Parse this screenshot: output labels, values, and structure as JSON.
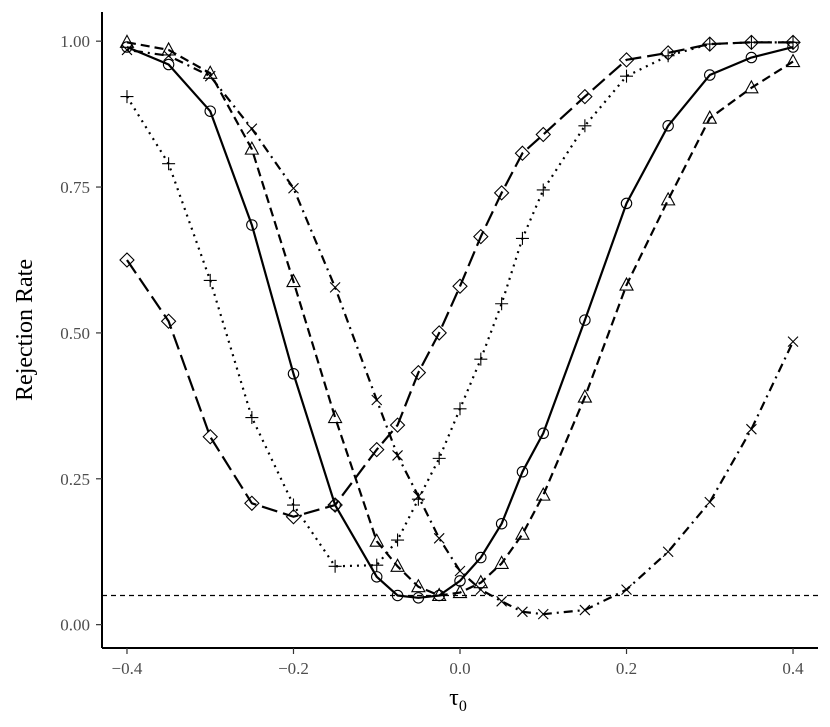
{
  "chart_data": {
    "type": "line",
    "xlabel": "τ0",
    "ylabel": "Rejection Rate",
    "xlim": [
      -0.43,
      0.43
    ],
    "ylim": [
      -0.04,
      1.05
    ],
    "x_ticks": [
      -0.4,
      -0.2,
      0.0,
      0.2,
      0.4
    ],
    "x_tick_labels": [
      "−0.4",
      "−0.2",
      "0.0",
      "0.2",
      "0.4"
    ],
    "y_ticks": [
      0.0,
      0.25,
      0.5,
      0.75,
      1.0
    ],
    "y_tick_labels": [
      "0.00",
      "0.25",
      "0.50",
      "0.75",
      "1.00"
    ],
    "reference_line": {
      "y": 0.05,
      "style": "dashed"
    },
    "grid": false,
    "series": [
      {
        "marker": "circle",
        "line_style": "solid",
        "x": [
          -0.4,
          -0.35,
          -0.3,
          -0.25,
          -0.2,
          -0.15,
          -0.1,
          -0.075,
          -0.05,
          -0.025,
          0.0,
          0.025,
          0.05,
          0.075,
          0.1,
          0.15,
          0.2,
          0.25,
          0.3,
          0.35,
          0.4
        ],
        "y": [
          0.99,
          0.96,
          0.88,
          0.685,
          0.43,
          0.205,
          0.082,
          0.05,
          0.046,
          0.05,
          0.075,
          0.115,
          0.173,
          0.262,
          0.328,
          0.522,
          0.722,
          0.855,
          0.942,
          0.972,
          0.99
        ]
      },
      {
        "marker": "triangle",
        "line_style": "dashed",
        "x": [
          -0.4,
          -0.35,
          -0.3,
          -0.25,
          -0.2,
          -0.15,
          -0.1,
          -0.075,
          -0.05,
          -0.025,
          0.0,
          0.025,
          0.05,
          0.075,
          0.1,
          0.15,
          0.2,
          0.25,
          0.3,
          0.35,
          0.4
        ],
        "y": [
          0.998,
          0.985,
          0.945,
          0.815,
          0.588,
          0.355,
          0.143,
          0.1,
          0.065,
          0.05,
          0.055,
          0.072,
          0.105,
          0.155,
          0.222,
          0.39,
          0.582,
          0.728,
          0.868,
          0.92,
          0.965
        ]
      },
      {
        "marker": "cross",
        "line_style": "dotdash",
        "x": [
          -0.4,
          -0.35,
          -0.3,
          -0.25,
          -0.2,
          -0.15,
          -0.1,
          -0.075,
          -0.05,
          -0.025,
          0.0,
          0.025,
          0.05,
          0.075,
          0.1,
          0.15,
          0.2,
          0.25,
          0.3,
          0.35,
          0.4
        ],
        "y": [
          0.985,
          0.975,
          0.94,
          0.85,
          0.748,
          0.578,
          0.385,
          0.29,
          0.22,
          0.148,
          0.092,
          0.06,
          0.04,
          0.022,
          0.018,
          0.025,
          0.06,
          0.125,
          0.21,
          0.335,
          0.485
        ]
      },
      {
        "marker": "plus",
        "line_style": "dotted",
        "x": [
          -0.4,
          -0.35,
          -0.3,
          -0.25,
          -0.2,
          -0.15,
          -0.1,
          -0.075,
          -0.05,
          -0.025,
          0.0,
          0.025,
          0.05,
          0.075,
          0.1,
          0.15,
          0.2,
          0.25,
          0.3,
          0.35,
          0.4
        ],
        "y": [
          0.905,
          0.79,
          0.59,
          0.355,
          0.205,
          0.1,
          0.102,
          0.145,
          0.215,
          0.285,
          0.37,
          0.455,
          0.55,
          0.662,
          0.745,
          0.855,
          0.94,
          0.975,
          0.995,
          0.998,
          0.998
        ]
      },
      {
        "marker": "diamond",
        "line_style": "longdash",
        "x": [
          -0.4,
          -0.35,
          -0.3,
          -0.25,
          -0.2,
          -0.15,
          -0.1,
          -0.075,
          -0.05,
          -0.025,
          0.0,
          0.025,
          0.05,
          0.075,
          0.1,
          0.15,
          0.2,
          0.25,
          0.3,
          0.35,
          0.4
        ],
        "y": [
          0.625,
          0.52,
          0.322,
          0.208,
          0.185,
          0.205,
          0.3,
          0.342,
          0.432,
          0.5,
          0.58,
          0.665,
          0.74,
          0.808,
          0.84,
          0.905,
          0.968,
          0.98,
          0.995,
          0.998,
          0.998
        ]
      }
    ]
  }
}
